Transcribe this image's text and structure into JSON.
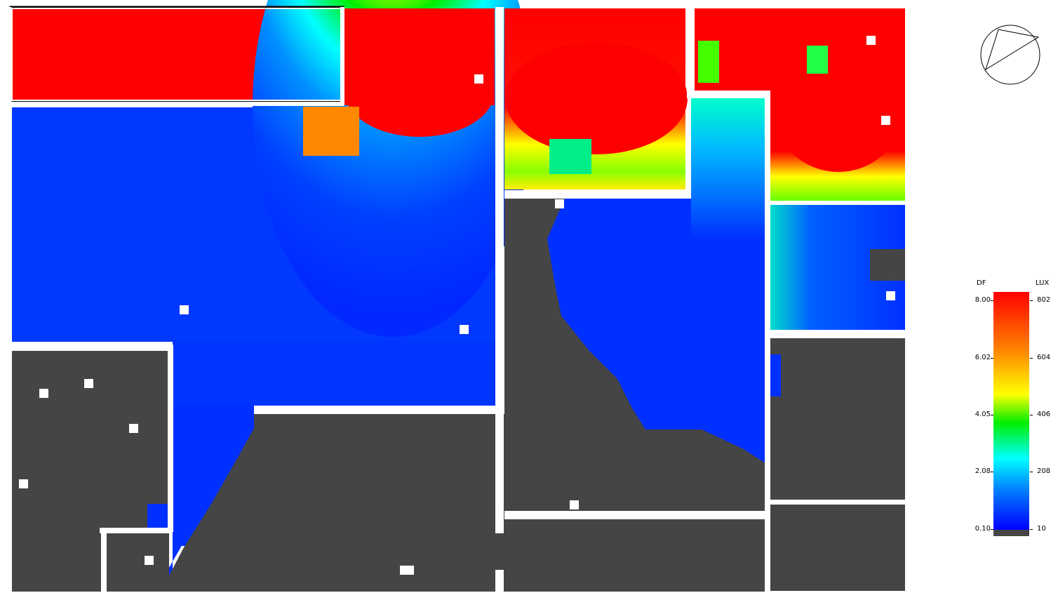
{
  "legend": {
    "df_header": "DF",
    "lux_header": "LUX",
    "df_ticks": [
      "8.00",
      "6.02",
      "4.05",
      "2.08",
      "0.10"
    ],
    "lux_ticks": [
      "802",
      "604",
      "406",
      "208",
      "10"
    ]
  },
  "colors": {
    "high": "#ff0000",
    "orange": "#ff8800",
    "yellow": "#ffff00",
    "green": "#00ee00",
    "cyan": "#00ffff",
    "mid_blue": "#0080ff",
    "low": "#0000ff",
    "no_data": "#454545",
    "walls": "#ffffff"
  },
  "icons": {
    "compass": "north-compass-icon"
  }
}
